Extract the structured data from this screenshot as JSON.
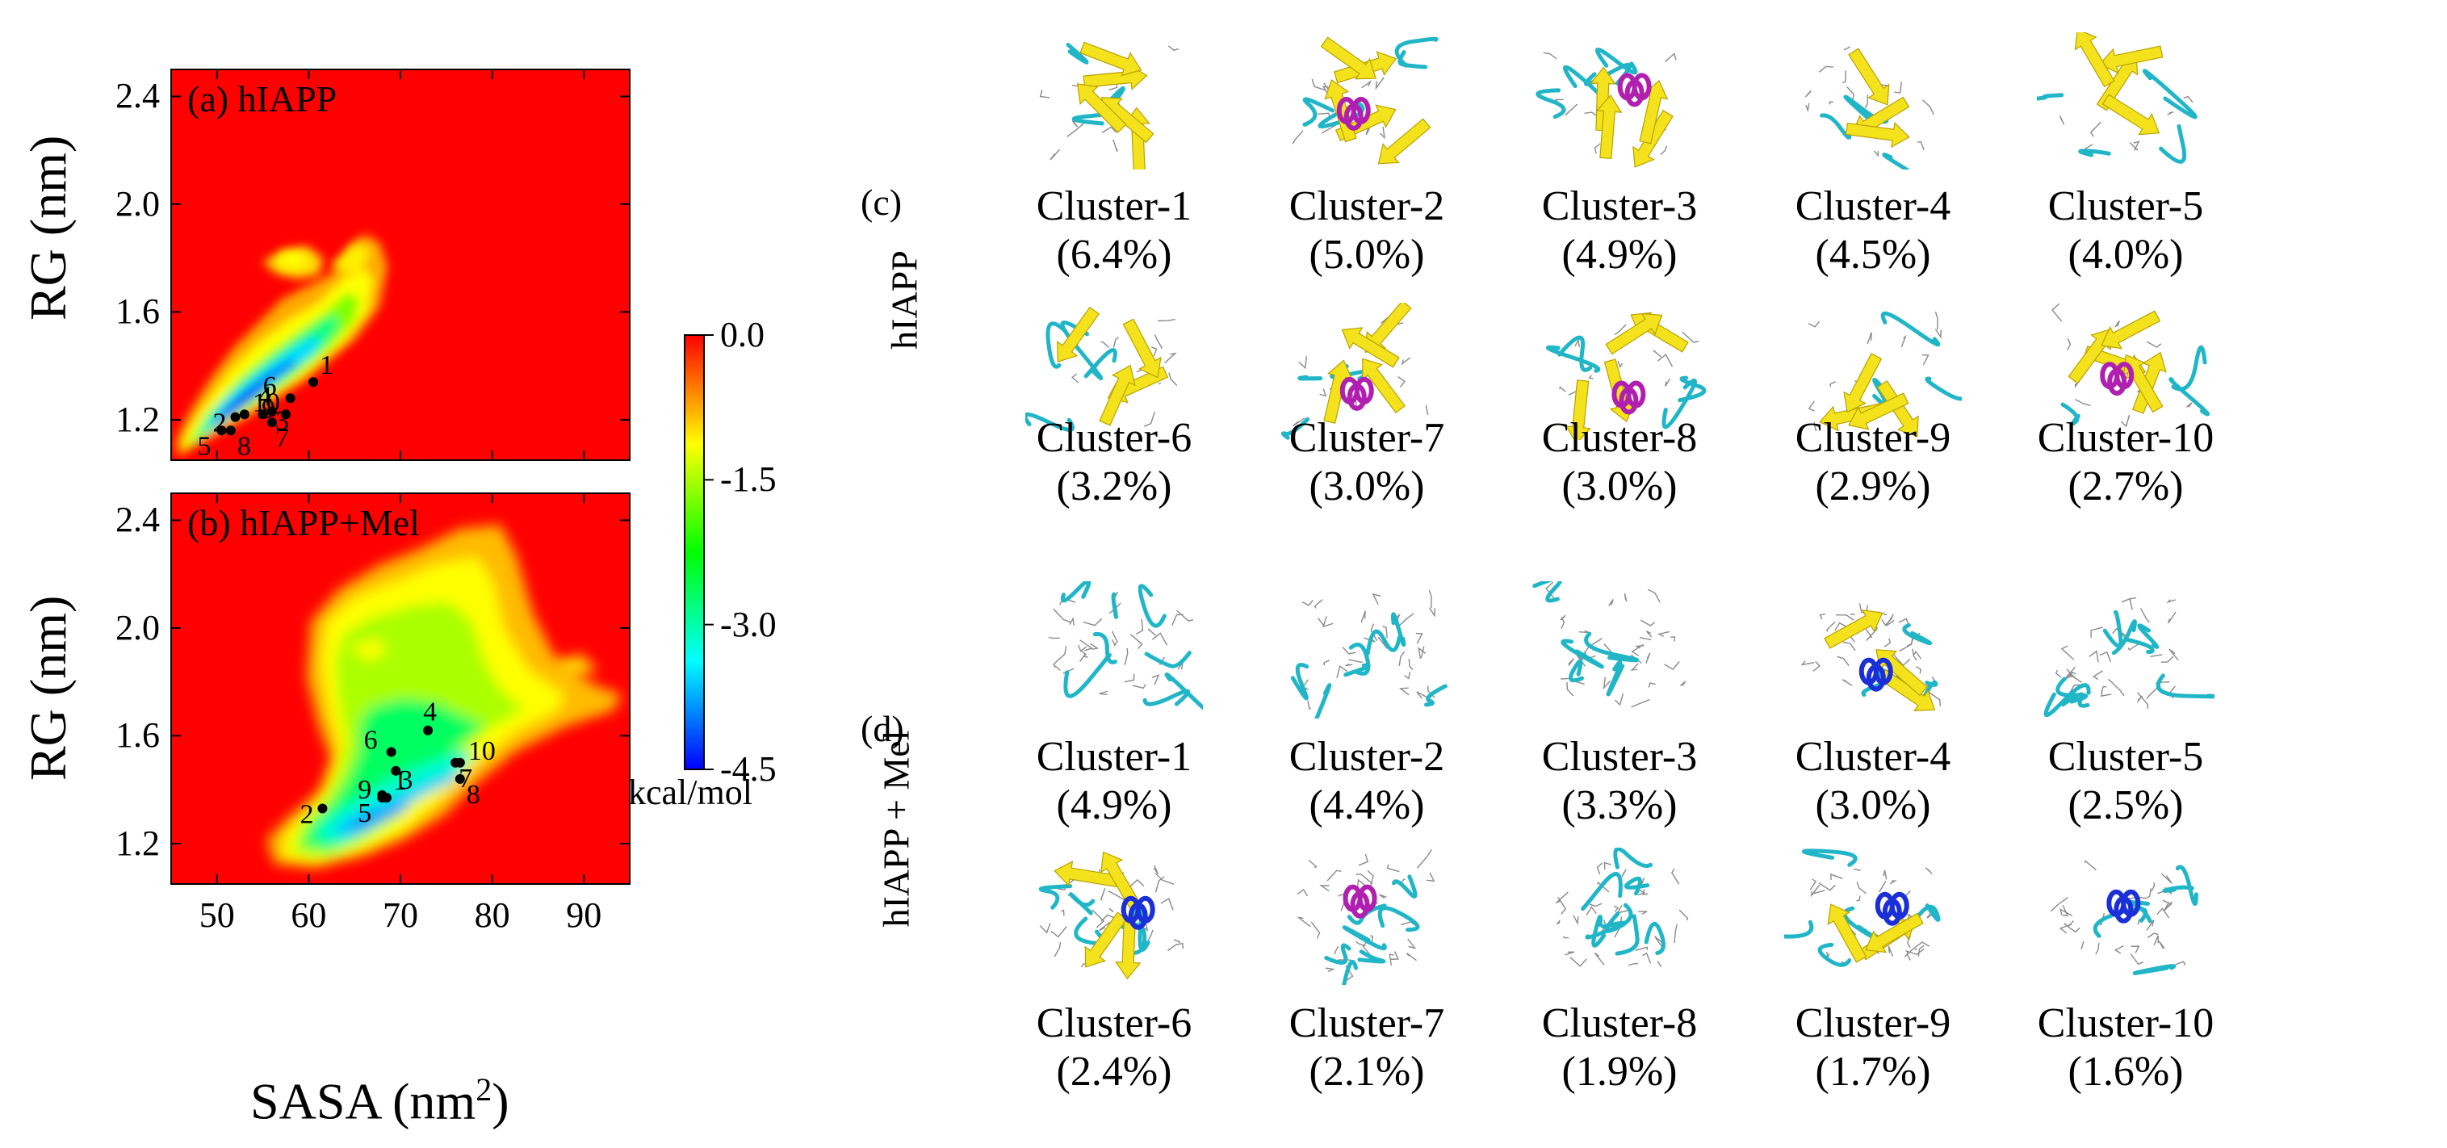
{
  "panels": {
    "a": {
      "label": "(a) hIAPP"
    },
    "b": {
      "label": "(b) hIAPP+Mel"
    }
  },
  "axes": {
    "y_label": "RG (nm)",
    "x_label": "SASA (nm²)",
    "x_ticks": [
      "50",
      "60",
      "70",
      "80",
      "90"
    ],
    "y_ticks": [
      "2.4",
      "2.0",
      "1.6",
      "1.2"
    ]
  },
  "colorbar": {
    "ticks": [
      "0.0",
      "-1.5",
      "-3.0",
      "-4.5"
    ],
    "unit": "kcal/mol",
    "colors": [
      "#ff0000",
      "#ffff00",
      "#00ff00",
      "#00ffff",
      "#0000ff"
    ]
  },
  "chart_data": [
    {
      "type": "heatmap",
      "panel": "(a) hIAPP",
      "xlabel": "SASA (nm²)",
      "ylabel": "RG (nm)",
      "xlim": [
        45,
        95
      ],
      "ylim": [
        1.05,
        2.5
      ],
      "zlim": [
        -4.5,
        0.0
      ],
      "points": [
        {
          "label": "1",
          "x": 60.5,
          "y": 1.34
        },
        {
          "label": "2",
          "x": 52.0,
          "y": 1.21
        },
        {
          "label": "3",
          "x": 56.0,
          "y": 1.23
        },
        {
          "label": "4",
          "x": 55.0,
          "y": 1.22
        },
        {
          "label": "5",
          "x": 50.5,
          "y": 1.16
        },
        {
          "label": "6",
          "x": 58.0,
          "y": 1.28
        },
        {
          "label": "7",
          "x": 56.0,
          "y": 1.19
        },
        {
          "label": "8",
          "x": 51.5,
          "y": 1.16
        },
        {
          "label": "9",
          "x": 57.5,
          "y": 1.22
        },
        {
          "label": "10",
          "x": 53.0,
          "y": 1.22
        }
      ]
    },
    {
      "type": "heatmap",
      "panel": "(b) hIAPP+Mel",
      "xlabel": "SASA (nm²)",
      "ylabel": "RG (nm)",
      "xlim": [
        45,
        95
      ],
      "ylim": [
        1.05,
        2.5
      ],
      "zlim": [
        -4.5,
        0.0
      ],
      "points": [
        {
          "label": "1",
          "x": 68.5,
          "y": 1.37
        },
        {
          "label": "2",
          "x": 61.5,
          "y": 1.33
        },
        {
          "label": "3",
          "x": 69.5,
          "y": 1.47
        },
        {
          "label": "4",
          "x": 73.0,
          "y": 1.62
        },
        {
          "label": "5",
          "x": 68.0,
          "y": 1.37
        },
        {
          "label": "6",
          "x": 69.0,
          "y": 1.54
        },
        {
          "label": "7",
          "x": 76.0,
          "y": 1.5
        },
        {
          "label": "8",
          "x": 76.5,
          "y": 1.44
        },
        {
          "label": "9",
          "x": 68.0,
          "y": 1.38
        },
        {
          "label": "10",
          "x": 76.5,
          "y": 1.5
        }
      ]
    }
  ],
  "structure_panels": {
    "c": {
      "tag": "(c)",
      "side_label": "hIAPP",
      "clusters": [
        {
          "name": "Cluster-1",
          "pct": "(6.4%)"
        },
        {
          "name": "Cluster-2",
          "pct": "(5.0%)"
        },
        {
          "name": "Cluster-3",
          "pct": "(4.9%)"
        },
        {
          "name": "Cluster-4",
          "pct": "(4.5%)"
        },
        {
          "name": "Cluster-5",
          "pct": "(4.0%)"
        },
        {
          "name": "Cluster-6",
          "pct": "(3.2%)"
        },
        {
          "name": "Cluster-7",
          "pct": "(3.0%)"
        },
        {
          "name": "Cluster-8",
          "pct": "(3.0%)"
        },
        {
          "name": "Cluster-9",
          "pct": "(2.9%)"
        },
        {
          "name": "Cluster-10",
          "pct": "(2.7%)"
        }
      ]
    },
    "d": {
      "tag": "(d)",
      "side_label": "hIAPP + Mel",
      "clusters": [
        {
          "name": "Cluster-1",
          "pct": "(4.9%)"
        },
        {
          "name": "Cluster-2",
          "pct": "(4.4%)"
        },
        {
          "name": "Cluster-3",
          "pct": "(3.3%)"
        },
        {
          "name": "Cluster-4",
          "pct": "(3.0%)"
        },
        {
          "name": "Cluster-5",
          "pct": "(2.5%)"
        },
        {
          "name": "Cluster-6",
          "pct": "(2.4%)"
        },
        {
          "name": "Cluster-7",
          "pct": "(2.1%)"
        },
        {
          "name": "Cluster-8",
          "pct": "(1.9%)"
        },
        {
          "name": "Cluster-9",
          "pct": "(1.7%)"
        },
        {
          "name": "Cluster-10",
          "pct": "(1.6%)"
        }
      ]
    }
  }
}
